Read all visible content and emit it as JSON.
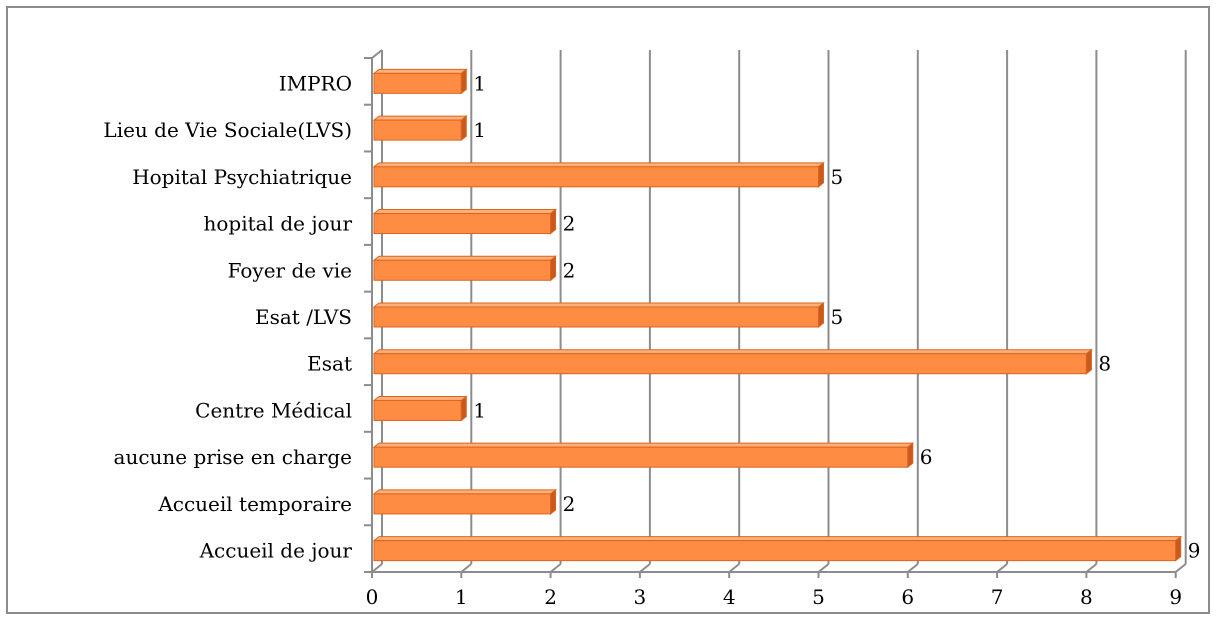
{
  "chart_data": {
    "type": "bar",
    "orientation": "horizontal",
    "three_d": true,
    "title": "",
    "xlabel": "",
    "ylabel": "",
    "categories": [
      "Accueil de jour",
      "Accueil temporaire",
      "aucune prise en charge",
      "Centre Médical",
      "Esat",
      "Esat /LVS",
      "Foyer de vie",
      "hopital de jour",
      "Hopital Psychiatrique",
      "Lieu de Vie Sociale(LVS)",
      "IMPRO"
    ],
    "series": [
      {
        "values": [
          9,
          2,
          6,
          1,
          8,
          5,
          2,
          2,
          5,
          1,
          1
        ]
      }
    ],
    "data_labels": [
      "9",
      "2",
      "6",
      "1",
      "8",
      "5",
      "2",
      "2",
      "5",
      "1",
      "1"
    ],
    "xlim": [
      0,
      9
    ],
    "x_ticks": [
      "0",
      "1",
      "2",
      "3",
      "4",
      "5",
      "6",
      "7",
      "8",
      "9"
    ],
    "grid": true,
    "legend": "none",
    "colors": {
      "bar_front": "#ff8c42",
      "bar_top": "#ffb07a",
      "bar_side": "#c9591c",
      "bar_stroke": "#d9661f",
      "gridline": "#8c8c8c",
      "axis": "#8c8c8c",
      "frame": "#8c8c8c"
    }
  }
}
